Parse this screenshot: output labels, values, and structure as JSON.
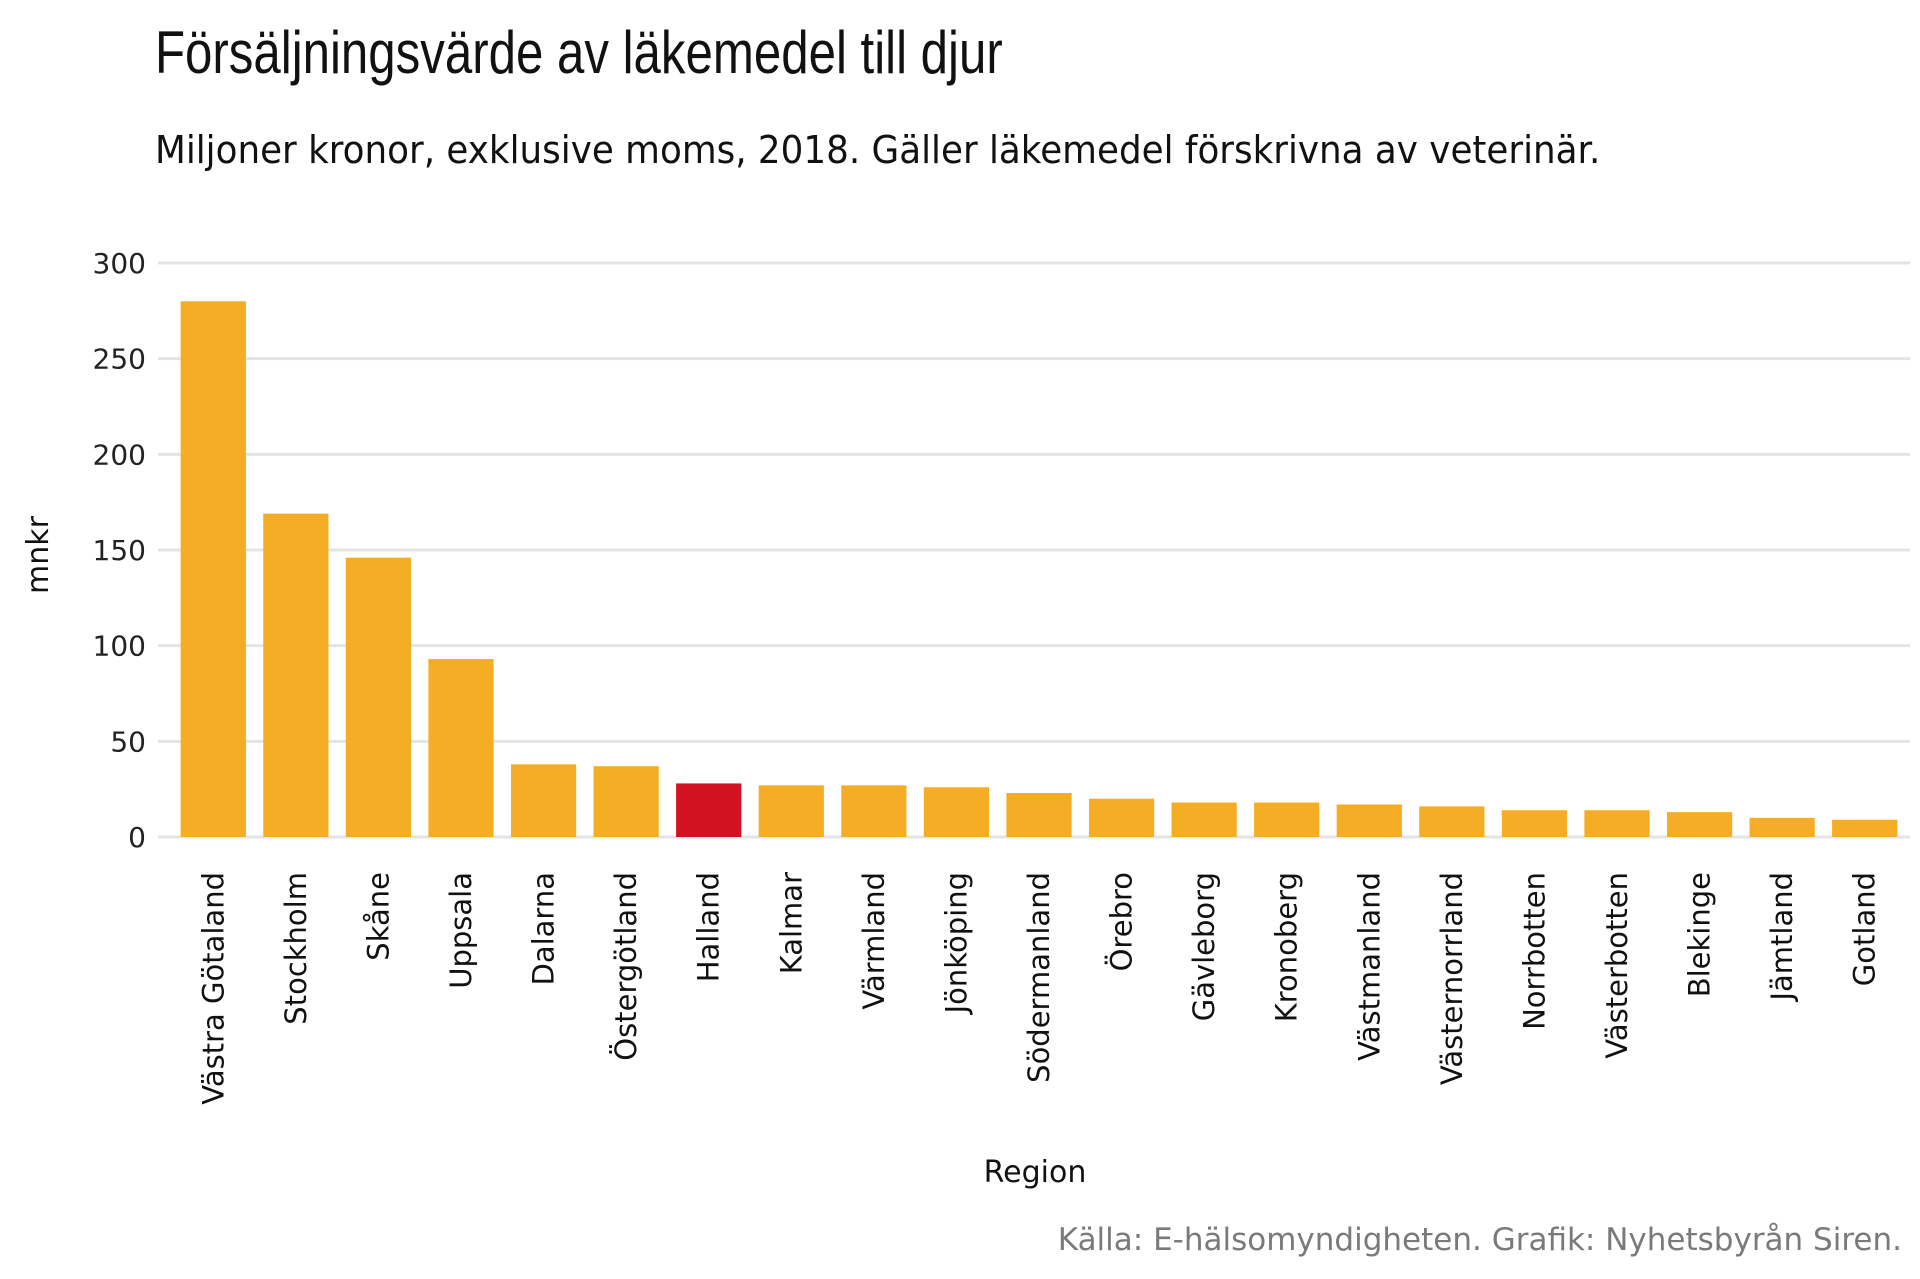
{
  "chart_data": {
    "type": "bar",
    "title": "Försäljningsvärde av läkemedel till djur",
    "subtitle": "Miljoner kronor, exklusive moms, 2018. Gäller läkemedel förskrivna av veterinär.",
    "caption": "Källa: E-hälsomyndigheten. Grafik: Nyhetsbyrån Siren.",
    "xlabel": "Region",
    "ylabel": "mnkr",
    "ylim": [
      0,
      300
    ],
    "yticks": [
      0,
      50,
      100,
      150,
      200,
      250,
      300
    ],
    "grid": true,
    "categories": [
      "Västra Götaland",
      "Stockholm",
      "Skåne",
      "Uppsala",
      "Dalarna",
      "Östergötland",
      "Halland",
      "Kalmar",
      "Värmland",
      "Jönköping",
      "Södermanland",
      "Örebro",
      "Gävleborg",
      "Kronoberg",
      "Västmanland",
      "Västernorrland",
      "Norrbotten",
      "Västerbotten",
      "Blekinge",
      "Jämtland",
      "Gotland"
    ],
    "values": [
      280,
      169,
      146,
      93,
      38,
      37,
      28,
      27,
      27,
      26,
      23,
      20,
      18,
      18,
      17,
      16,
      14,
      14,
      13,
      10,
      9
    ],
    "highlight": "Halland",
    "colors": {
      "default": "#F5AD26",
      "highlight": "#D31221",
      "grid": "#e4e4e4"
    }
  }
}
